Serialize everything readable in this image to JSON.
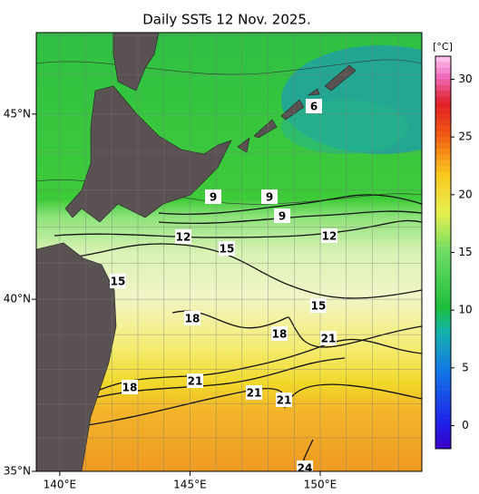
{
  "title": "Daily SSTs 12 Nov. 2025.",
  "lon_range": [
    139.1,
    153.9
  ],
  "lat_range": [
    35,
    47.07
  ],
  "lon_ticks": [
    {
      "value": 140,
      "label": "140°E"
    },
    {
      "value": 145,
      "label": "145°E"
    },
    {
      "value": 150,
      "label": "150°E"
    }
  ],
  "lat_ticks": [
    {
      "value": 35,
      "label": "35°N"
    },
    {
      "value": 40,
      "label": "40°N"
    },
    {
      "value": 45,
      "label": "45°N"
    }
  ],
  "lon_grid": [
    140,
    141,
    142,
    143,
    144,
    145,
    146,
    147,
    148,
    149,
    150,
    151,
    152,
    153
  ],
  "lat_grid": [
    36,
    37,
    38,
    39,
    40,
    41,
    42,
    43,
    44,
    45,
    46,
    47
  ],
  "colorbar": {
    "unit": "[°C]",
    "range": [
      -2,
      32
    ],
    "ticks": [
      0,
      5,
      10,
      15,
      20,
      25,
      30
    ]
  },
  "contour_labels": [
    6,
    9,
    9,
    9,
    12,
    12,
    15,
    15,
    15,
    18,
    18,
    21,
    18,
    21,
    21,
    21,
    24
  ]
}
